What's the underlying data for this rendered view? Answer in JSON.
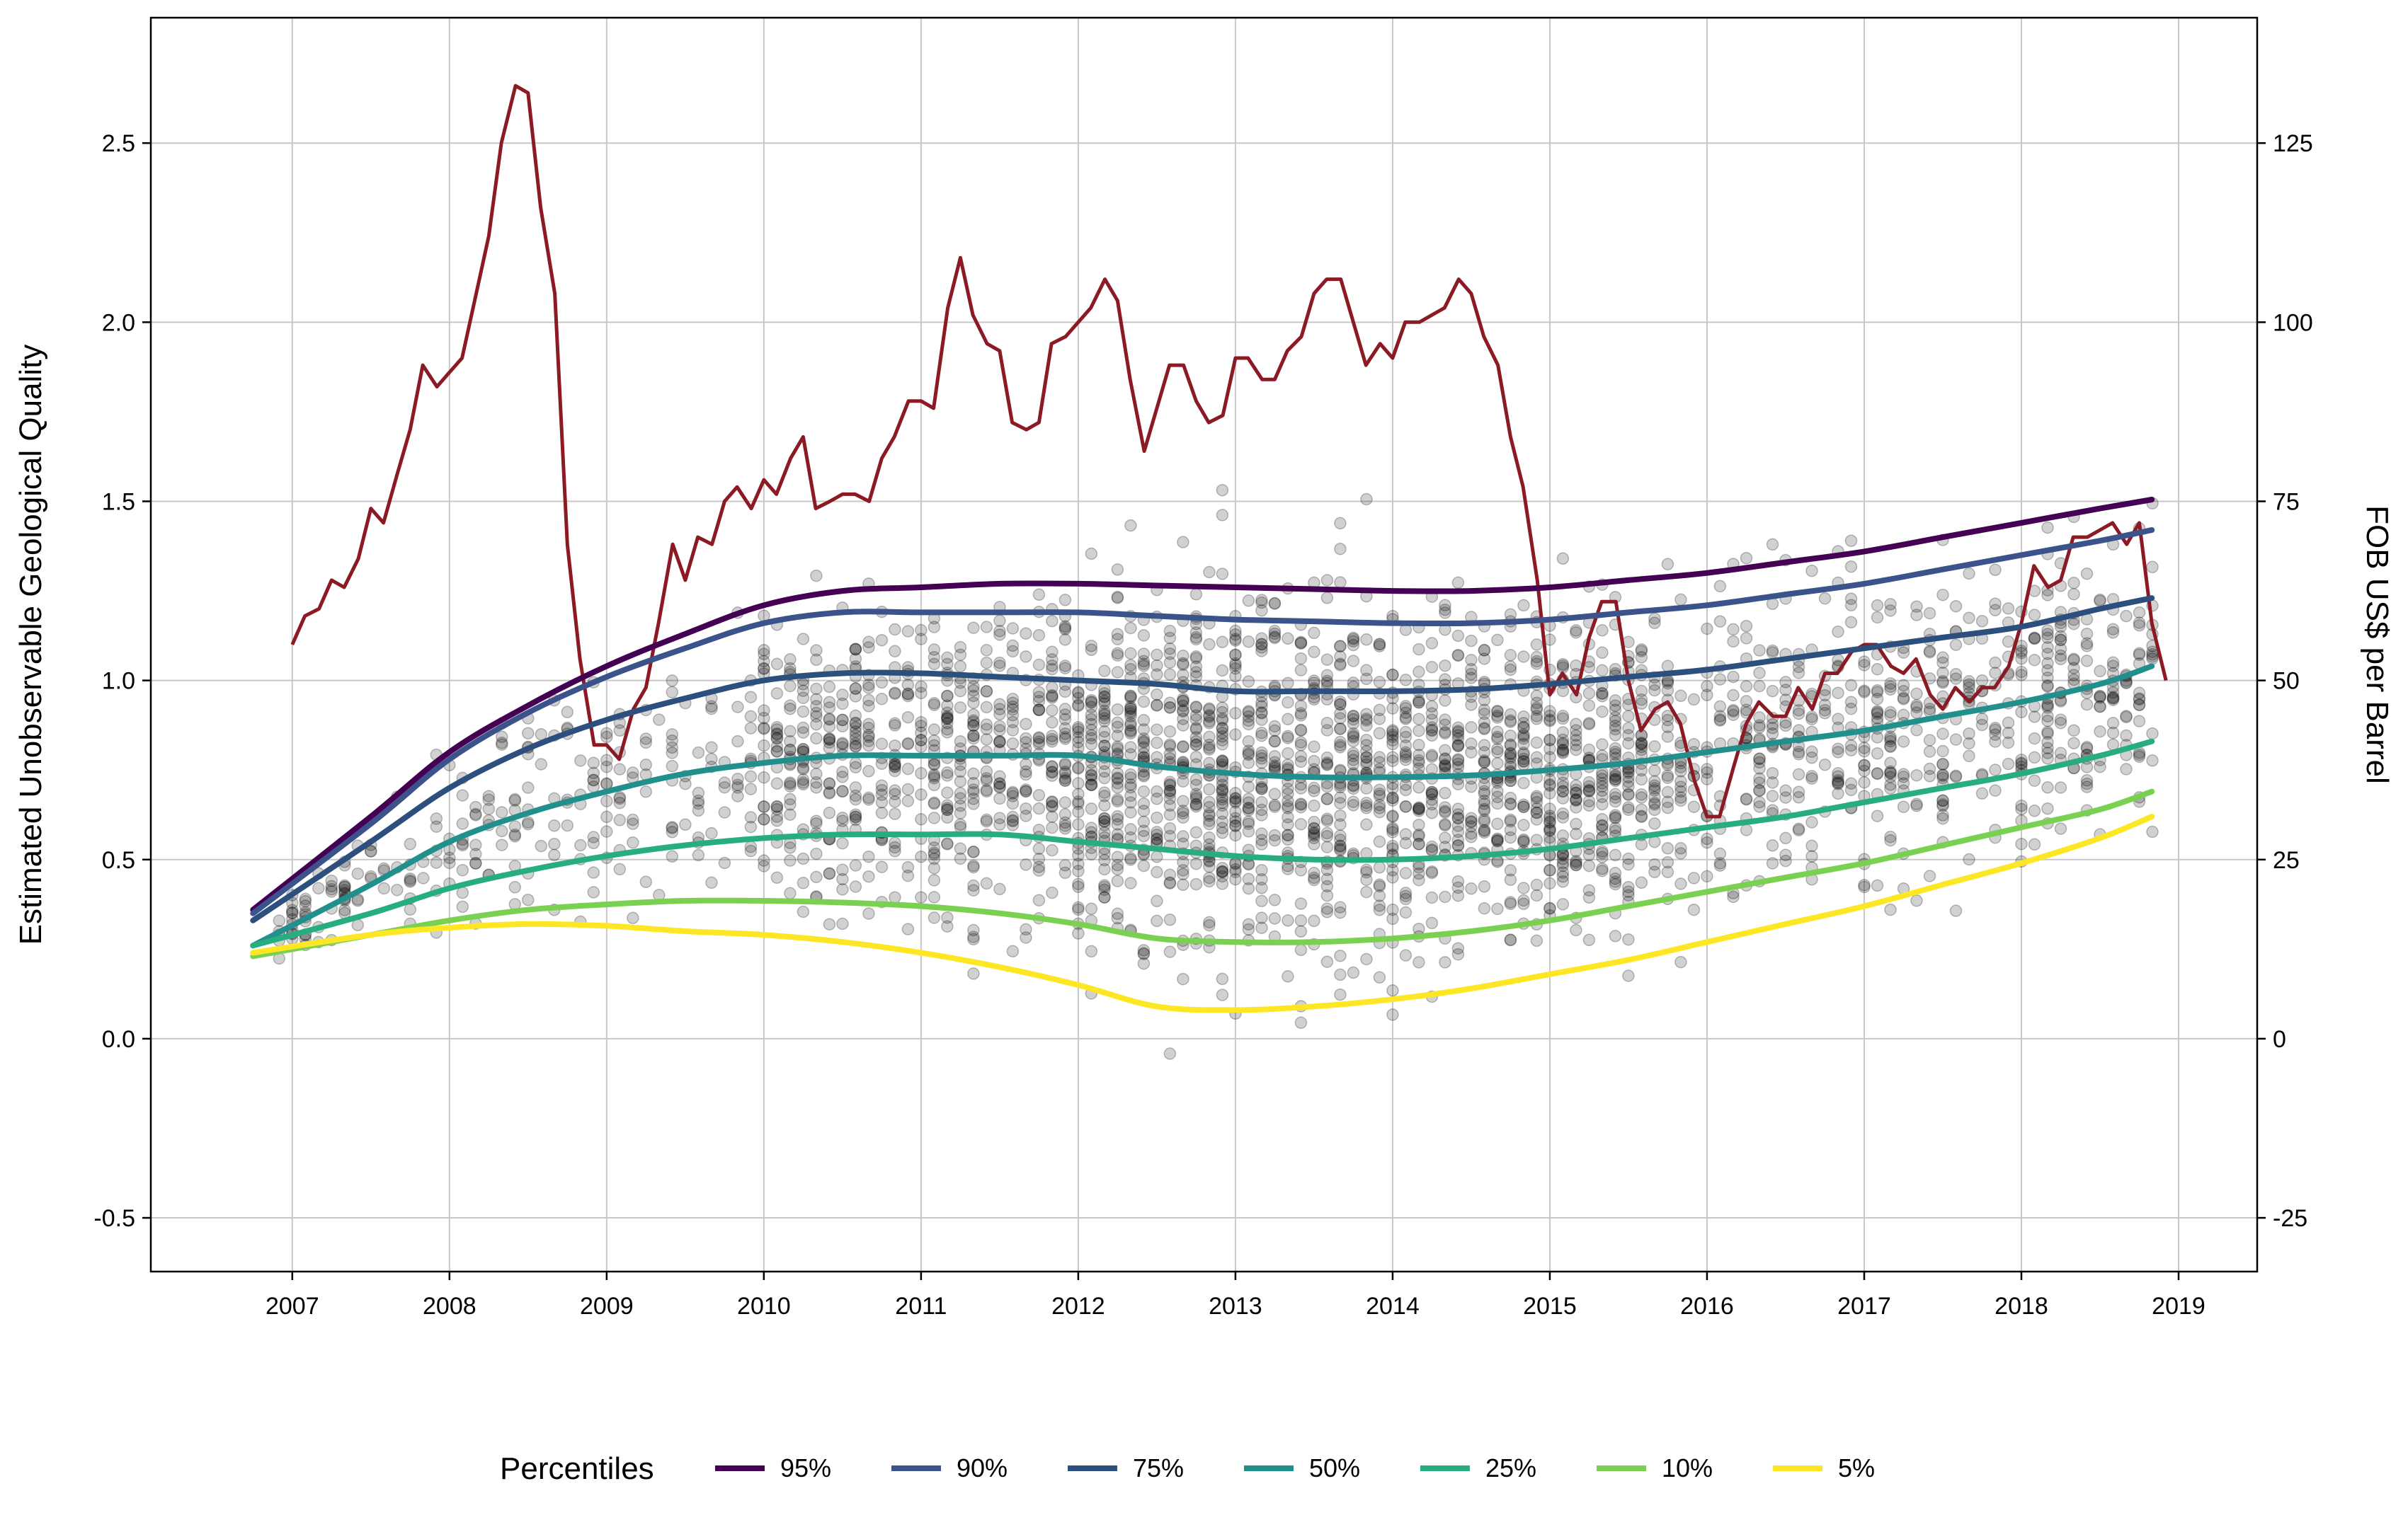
{
  "chart_data": {
    "type": "line",
    "title": "",
    "ylabel": "Estimated Unobservable Geological Quality",
    "y2label": "FOB US$ per Barrel",
    "xlim": [
      2006.1,
      2019.5
    ],
    "ylim": [
      -0.65,
      2.85
    ],
    "y2lim": [
      -32.5,
      142.5
    ],
    "x_ticks": [
      2007,
      2008,
      2009,
      2010,
      2011,
      2012,
      2013,
      2014,
      2015,
      2016,
      2017,
      2018,
      2019
    ],
    "y_ticks": [
      -0.5,
      0.0,
      0.5,
      1.0,
      1.5,
      2.0,
      2.5
    ],
    "y_tick_labels": [
      "-0.5",
      "0.0",
      "0.5",
      "1.0",
      "1.5",
      "2.0",
      "2.5"
    ],
    "y2_ticks": [
      -25,
      0,
      25,
      50,
      75,
      100,
      125
    ],
    "grid": true,
    "legend_title": "Percentiles",
    "legend_position": "bottom",
    "percentile_x": [
      2006.75,
      2007.5,
      2008,
      2008.5,
      2009,
      2009.5,
      2010,
      2010.5,
      2011,
      2011.5,
      2012,
      2012.5,
      2013,
      2013.5,
      2014,
      2014.5,
      2015,
      2015.5,
      2016,
      2016.5,
      2017,
      2017.5,
      2018,
      2018.5,
      2018.83
    ],
    "series": [
      {
        "name": "95%",
        "color": "#440154",
        "values": [
          0.36,
          0.62,
          0.8,
          0.93,
          1.04,
          1.13,
          1.21,
          1.25,
          1.26,
          1.27,
          1.27,
          1.265,
          1.26,
          1.255,
          1.25,
          1.25,
          1.26,
          1.28,
          1.3,
          1.33,
          1.36,
          1.4,
          1.44,
          1.48,
          1.505
        ]
      },
      {
        "name": "90%",
        "color": "#3b528b",
        "values": [
          0.35,
          0.6,
          0.78,
          0.91,
          1.01,
          1.09,
          1.16,
          1.19,
          1.19,
          1.19,
          1.19,
          1.18,
          1.17,
          1.165,
          1.16,
          1.16,
          1.17,
          1.19,
          1.21,
          1.24,
          1.27,
          1.31,
          1.35,
          1.39,
          1.42
        ]
      },
      {
        "name": "75%",
        "color": "#2c4f7d",
        "values": [
          0.33,
          0.55,
          0.7,
          0.81,
          0.89,
          0.95,
          1.0,
          1.02,
          1.02,
          1.01,
          1.0,
          0.99,
          0.97,
          0.97,
          0.97,
          0.975,
          0.99,
          1.01,
          1.03,
          1.06,
          1.09,
          1.12,
          1.15,
          1.2,
          1.23
        ]
      },
      {
        "name": "50%",
        "color": "#21908d",
        "values": [
          0.26,
          0.43,
          0.55,
          0.63,
          0.69,
          0.74,
          0.77,
          0.79,
          0.79,
          0.79,
          0.79,
          0.76,
          0.74,
          0.73,
          0.73,
          0.735,
          0.75,
          0.77,
          0.8,
          0.83,
          0.86,
          0.9,
          0.94,
          0.99,
          1.04
        ]
      },
      {
        "name": "25%",
        "color": "#27ad81",
        "values": [
          0.26,
          0.35,
          0.42,
          0.47,
          0.51,
          0.54,
          0.56,
          0.57,
          0.57,
          0.57,
          0.55,
          0.53,
          0.51,
          0.5,
          0.5,
          0.51,
          0.53,
          0.56,
          0.59,
          0.62,
          0.66,
          0.7,
          0.74,
          0.79,
          0.83
        ]
      },
      {
        "name": "10%",
        "color": "#7ad151",
        "values": [
          0.23,
          0.29,
          0.33,
          0.36,
          0.375,
          0.385,
          0.385,
          0.38,
          0.37,
          0.35,
          0.32,
          0.28,
          0.27,
          0.27,
          0.28,
          0.3,
          0.33,
          0.37,
          0.41,
          0.45,
          0.49,
          0.54,
          0.59,
          0.64,
          0.69
        ]
      },
      {
        "name": "5%",
        "color": "#fde725",
        "values": [
          0.24,
          0.29,
          0.31,
          0.32,
          0.315,
          0.3,
          0.29,
          0.27,
          0.24,
          0.2,
          0.15,
          0.09,
          0.08,
          0.09,
          0.11,
          0.14,
          0.18,
          0.22,
          0.27,
          0.32,
          0.37,
          0.43,
          0.49,
          0.56,
          0.62
        ]
      }
    ],
    "price_series": {
      "color": "#8b1a24",
      "x": [
        2007.0,
        2007.08,
        2007.17,
        2007.25,
        2007.33,
        2007.42,
        2007.5,
        2007.58,
        2007.67,
        2007.75,
        2007.83,
        2007.92,
        2008.0,
        2008.08,
        2008.17,
        2008.25,
        2008.33,
        2008.42,
        2008.5,
        2008.58,
        2008.67,
        2008.75,
        2008.83,
        2008.92,
        2009.0,
        2009.08,
        2009.17,
        2009.25,
        2009.33,
        2009.42,
        2009.5,
        2009.58,
        2009.67,
        2009.75,
        2009.83,
        2009.92,
        2010.0,
        2010.08,
        2010.17,
        2010.25,
        2010.33,
        2010.42,
        2010.5,
        2010.58,
        2010.67,
        2010.75,
        2010.83,
        2010.92,
        2011.0,
        2011.08,
        2011.17,
        2011.25,
        2011.33,
        2011.42,
        2011.5,
        2011.58,
        2011.67,
        2011.75,
        2011.83,
        2011.92,
        2012.0,
        2012.08,
        2012.17,
        2012.25,
        2012.33,
        2012.42,
        2012.5,
        2012.58,
        2012.67,
        2012.75,
        2012.83,
        2012.92,
        2013.0,
        2013.08,
        2013.17,
        2013.25,
        2013.33,
        2013.42,
        2013.5,
        2013.58,
        2013.67,
        2013.75,
        2013.83,
        2013.92,
        2014.0,
        2014.08,
        2014.17,
        2014.25,
        2014.33,
        2014.42,
        2014.5,
        2014.58,
        2014.67,
        2014.75,
        2014.83,
        2014.92,
        2015.0,
        2015.08,
        2015.17,
        2015.25,
        2015.33,
        2015.42,
        2015.5,
        2015.58,
        2015.67,
        2015.75,
        2015.83,
        2015.92,
        2016.0,
        2016.08,
        2016.17,
        2016.25,
        2016.33,
        2016.42,
        2016.5,
        2016.58,
        2016.67,
        2016.75,
        2016.83,
        2016.92,
        2017.0,
        2017.08,
        2017.17,
        2017.25,
        2017.33,
        2017.42,
        2017.5,
        2017.58,
        2017.67,
        2017.75,
        2017.83,
        2017.92,
        2018.0,
        2018.08,
        2018.17,
        2018.25,
        2018.33,
        2018.42,
        2018.5,
        2018.58,
        2018.67,
        2018.75,
        2018.83,
        2018.92
      ],
      "values": [
        55,
        59,
        60,
        64,
        63,
        67,
        74,
        72,
        79,
        85,
        94,
        91,
        93,
        95,
        104,
        112,
        125,
        133,
        132,
        116,
        104,
        69,
        53,
        41,
        41,
        39,
        46,
        49,
        58,
        69,
        64,
        70,
        69,
        75,
        77,
        74,
        78,
        76,
        81,
        84,
        74,
        75,
        76,
        76,
        75,
        81,
        84,
        89,
        89,
        88,
        102,
        109,
        101,
        97,
        96,
        86,
        85,
        86,
        97,
        98,
        100,
        102,
        106,
        103,
        92,
        82,
        88,
        94,
        94,
        89,
        86,
        87,
        95,
        95,
        92,
        92,
        96,
        98,
        104,
        106,
        106,
        100,
        94,
        97,
        95,
        100,
        100,
        101,
        102,
        106,
        104,
        98,
        94,
        84,
        77,
        64,
        48,
        51,
        48,
        56,
        61,
        61,
        50,
        43,
        46,
        47,
        44,
        36,
        31,
        31,
        38,
        44,
        47,
        45,
        45,
        49,
        46,
        51,
        51,
        54,
        55,
        55,
        52,
        51,
        53,
        48,
        46,
        49,
        47,
        49,
        49,
        52,
        58,
        66,
        63,
        64,
        70,
        70,
        71,
        72,
        69,
        72,
        58,
        50
      ]
    },
    "scatter": {
      "description_points": 3000,
      "opacity": 0.18,
      "color": "#000000"
    }
  },
  "legend": {
    "title": "Percentiles",
    "items": [
      "95%",
      "90%",
      "75%",
      "50%",
      "25%",
      "10%",
      "5%"
    ]
  }
}
